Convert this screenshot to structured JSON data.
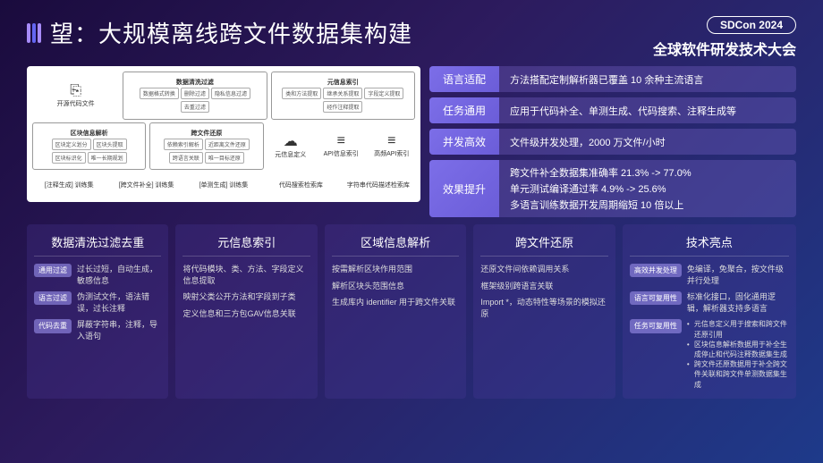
{
  "header": {
    "title": "望：大规模离线跨文件数据集构建",
    "badge": "SDCon 2024",
    "conf": "全球软件研发技术大会"
  },
  "diagram": {
    "r1": {
      "b1": {
        "icon": "⎘",
        "lbl": "开源代码文件"
      },
      "b2": {
        "ttl": "数据清洗过滤",
        "cells": [
          "数据格式转换",
          "删除过滤",
          "隐私信息过滤",
          "去重过滤"
        ]
      },
      "b3": {
        "ttl": "元信息索引",
        "cells": [
          "类和方法提取",
          "继承关系提取",
          "字段定义提取",
          "经作注释提取"
        ]
      }
    },
    "r2": {
      "b1": {
        "ttl": "区块信息解析",
        "cells": [
          "区块定义划分",
          "区块头提取",
          "区块标识化",
          "唯一长期规划"
        ]
      },
      "b2": {
        "ttl": "跨文件还原",
        "cells": [
          "依赖索引解析",
          "近距离文件还原",
          "跨语言关联",
          "唯一目标还原"
        ]
      },
      "b3": {
        "icon": "☁",
        "lbl": "元信息定义"
      },
      "b4": {
        "icon": "≡",
        "lbl": "API信息索引"
      },
      "b5": {
        "icon": "≡",
        "lbl": "高频API索引"
      }
    },
    "r3": {
      "b1": "[注释生成] 训练集",
      "b2": "[跨文件补全] 训练集",
      "b3": "[单测生成] 训练集",
      "b4": "代码搜索检索库",
      "b5": "字符串代码描述检索库"
    }
  },
  "feat": [
    {
      "l": "语言适配",
      "t": [
        "方法搭配定制解析器已覆盖 10 余种主流语言"
      ]
    },
    {
      "l": "任务通用",
      "t": [
        "应用于代码补全、单测生成、代码搜索、注释生成等"
      ]
    },
    {
      "l": "并发高效",
      "t": [
        "文件级并发处理，2000 万文件/小时"
      ]
    },
    {
      "l": "效果提升",
      "t": [
        "跨文件补全数据集准确率 21.3% -> 77.0%",
        "单元测试编译通过率 4.9% -> 25.6%",
        "多语言训练数据开发周期缩短 10 倍以上"
      ]
    }
  ],
  "cols": [
    {
      "h": "数据清洗过滤去重",
      "items": [
        {
          "tag": "通用过滤",
          "t": "过长过短，自动生成，敏感信息"
        },
        {
          "tag": "语言过滤",
          "t": "伪测试文件，语法错误，过长注释"
        },
        {
          "tag": "代码去重",
          "t": "屏蔽字符串，注释，导入语句"
        }
      ]
    },
    {
      "h": "元信息索引",
      "items": [
        {
          "t": "将代码模块、类、方法、字段定义信息提取"
        },
        {
          "t": "映射父类公开方法和字段到子类"
        },
        {
          "t": "定义信息和三方包GAV信息关联"
        }
      ]
    },
    {
      "h": "区域信息解析",
      "items": [
        {
          "t": "按需解析区块作用范围"
        },
        {
          "t": "解析区块头范围信息"
        },
        {
          "t": "生成库内 identifier 用于跨文件关联"
        }
      ]
    },
    {
      "h": "跨文件还原",
      "items": [
        {
          "t": "还原文件间依赖调用关系"
        },
        {
          "t": "框架级别跨语言关联"
        },
        {
          "t": "Import *，动态特性等场景的模拟还原"
        }
      ]
    },
    {
      "h": "技术亮点",
      "items": [
        {
          "tag": "高效并发处理",
          "t": "免编译，免聚合，按文件级并行处理"
        },
        {
          "tag": "语言可复用性",
          "t": "标准化接口，固化通用逻辑，解析器支持多语言"
        },
        {
          "tag": "任务可复用性",
          "bul": [
            "元信息定义用于搜索和跨文件还原引用",
            "区块信息解析数据用于补全生成停止和代码注释数据集生成",
            "跨文件还原数据用于补全跨文件关联和跨文件单测数据集生成"
          ]
        }
      ]
    }
  ]
}
